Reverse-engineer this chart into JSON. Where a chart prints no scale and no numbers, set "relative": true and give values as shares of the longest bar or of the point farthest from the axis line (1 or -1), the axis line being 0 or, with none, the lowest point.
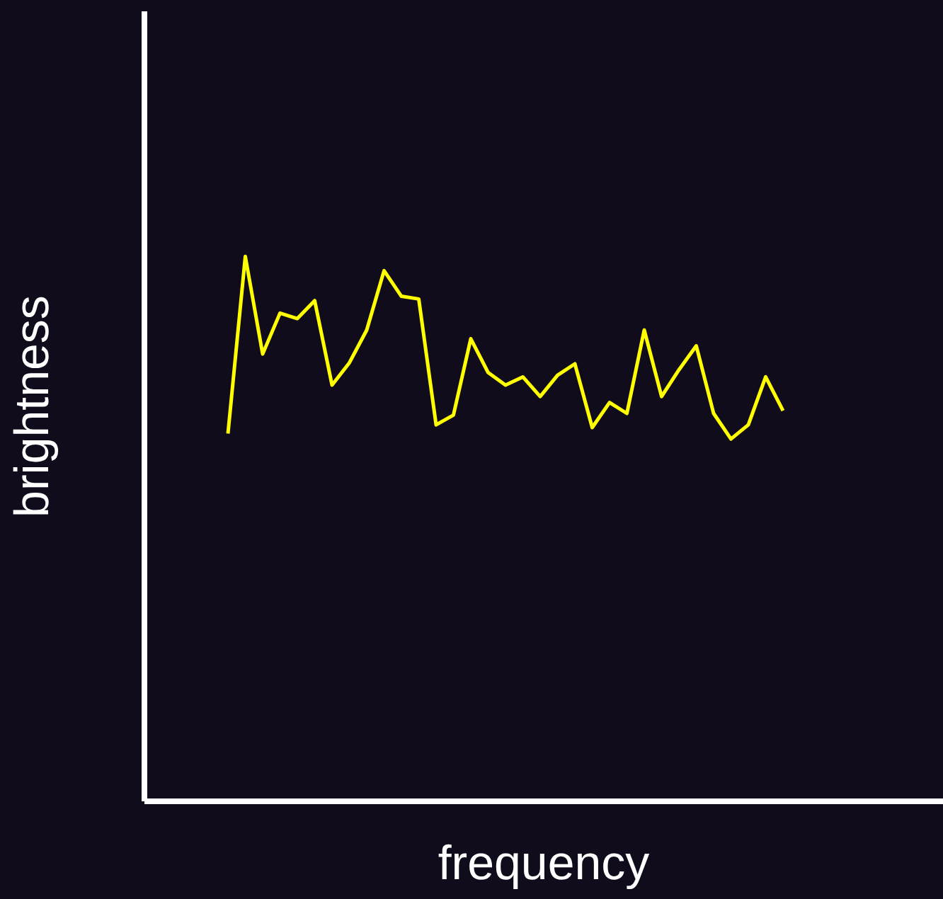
{
  "chart_data": {
    "type": "line",
    "xlabel": "frequency",
    "ylabel": "brightness",
    "relative": true,
    "categories": [
      null,
      null,
      null,
      null,
      null,
      null,
      null,
      null,
      null,
      null,
      null,
      null,
      null,
      null,
      null,
      null,
      null,
      null,
      null,
      null,
      null,
      null,
      null,
      null,
      null,
      null,
      null,
      null,
      null,
      null,
      null,
      null,
      null
    ],
    "series": [
      {
        "color": "#ffff00",
        "values": [
          0.675,
          1,
          0.821,
          0.896,
          0.886,
          0.919,
          0.764,
          0.805,
          0.865,
          0.974,
          0.927,
          0.922,
          0.691,
          0.709,
          0.849,
          0.787,
          0.764,
          0.779,
          0.743,
          0.782,
          0.803,
          0.686,
          0.732,
          0.712,
          0.865,
          0.743,
          0.792,
          0.836,
          0.712,
          0.665,
          0.691,
          0.779,
          0.717
        ]
      }
    ]
  }
}
